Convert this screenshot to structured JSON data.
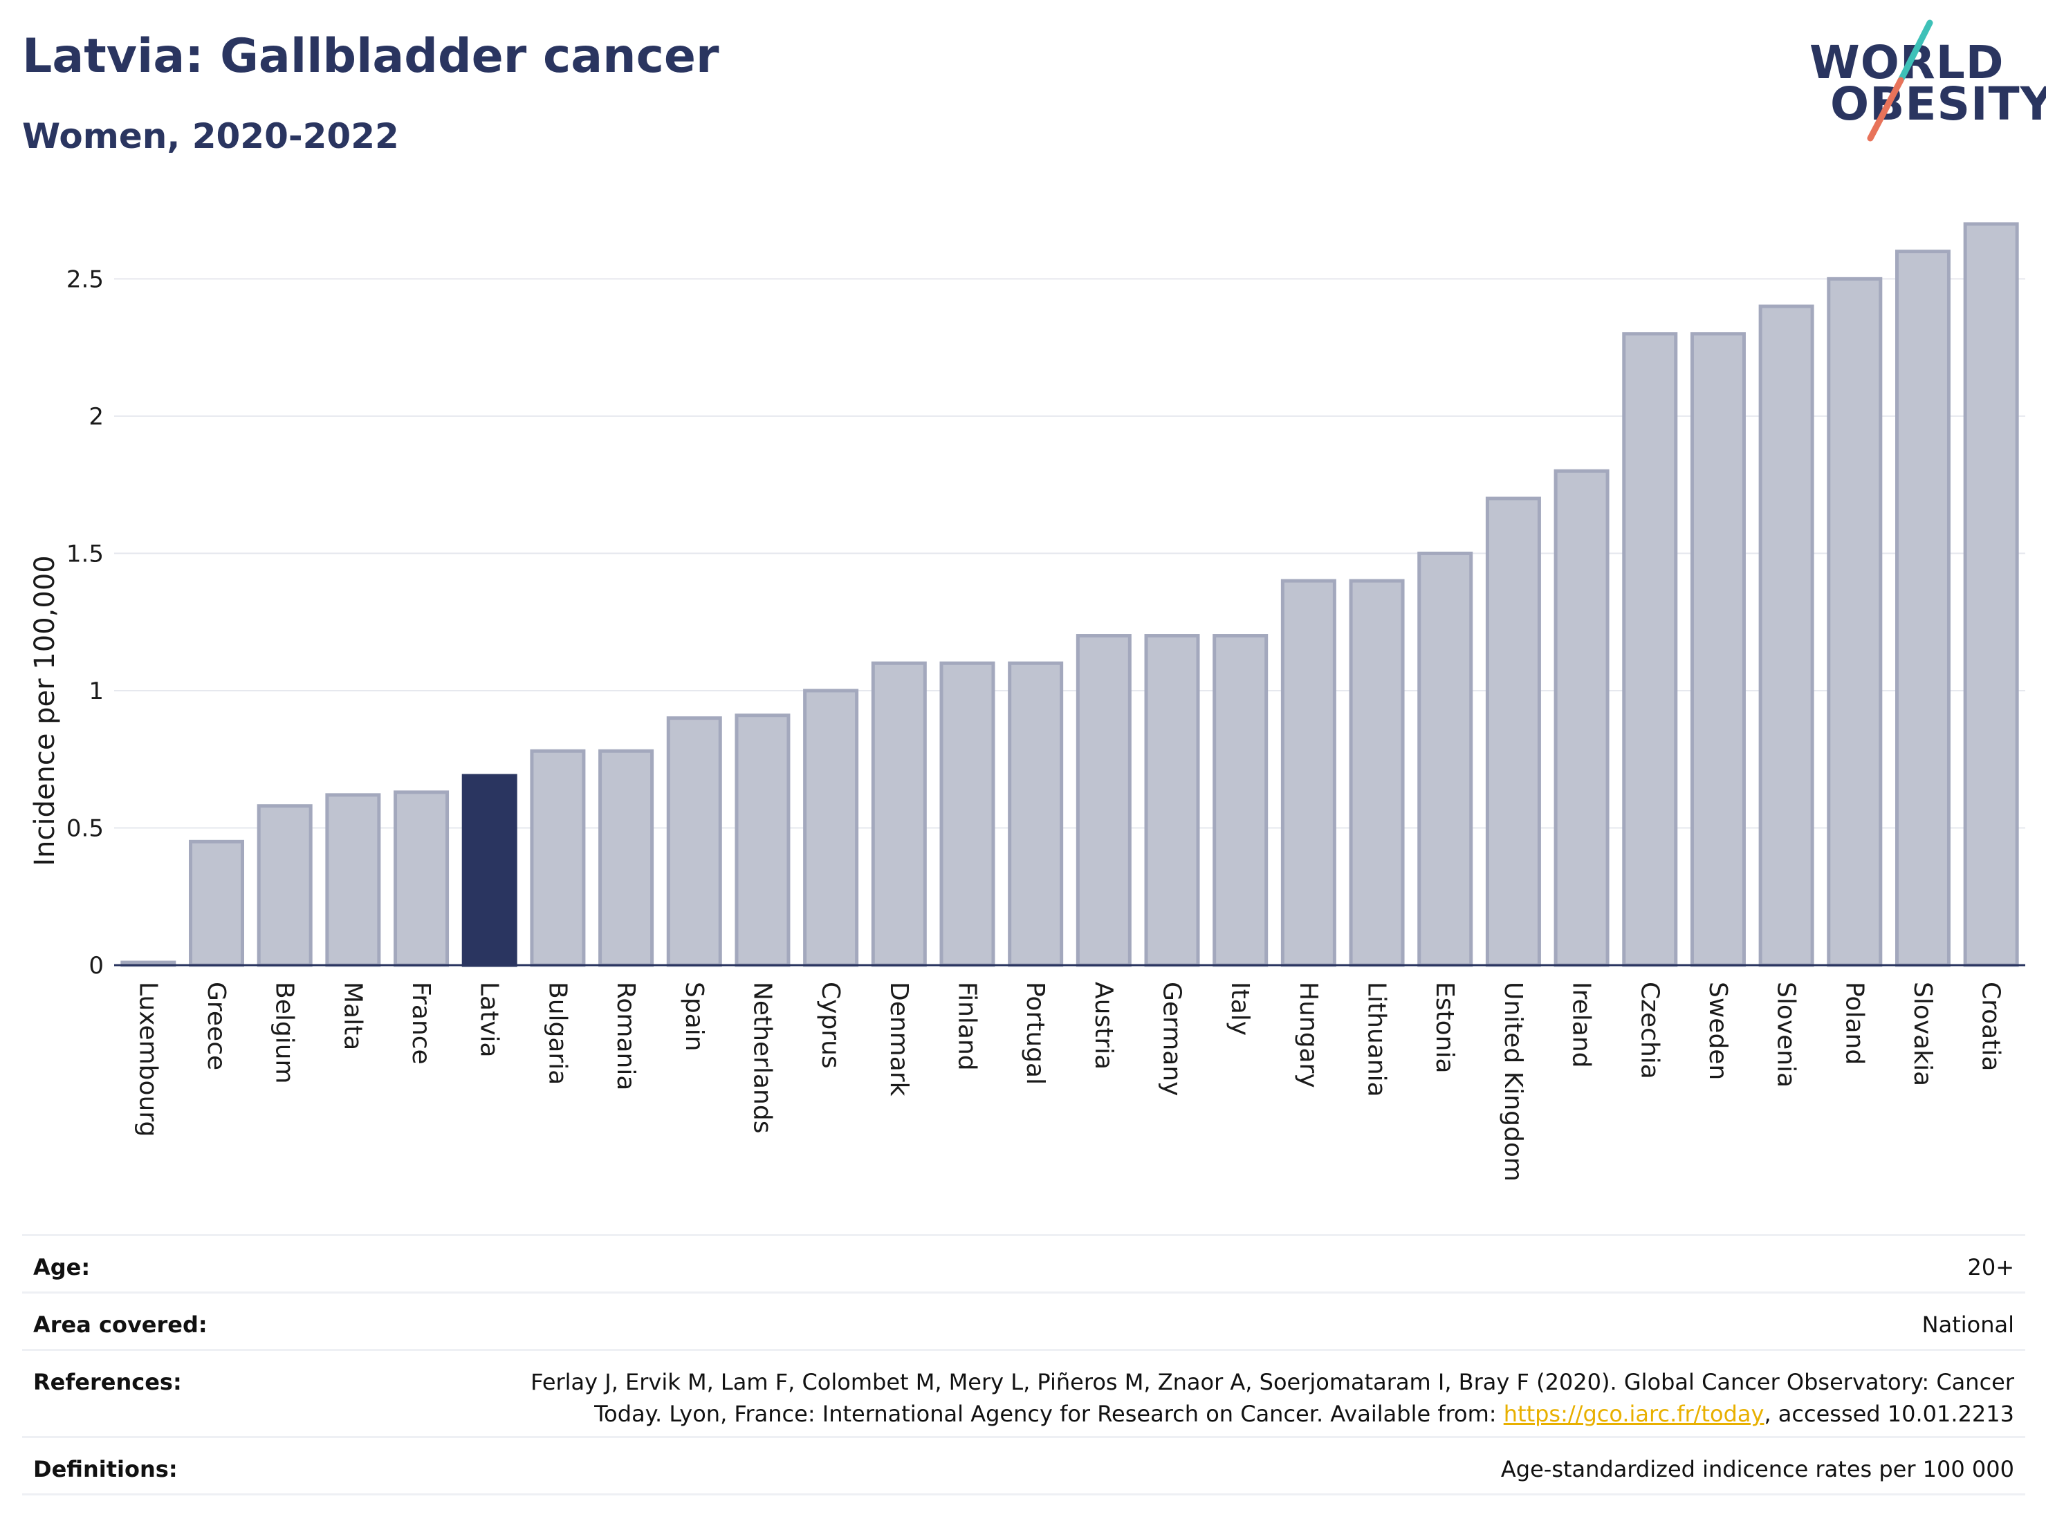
{
  "header": {
    "title": "Latvia: Gallbladder cancer",
    "subtitle": "Women, 2020-2022"
  },
  "logo": {
    "line1": "WORLD",
    "line2": "OBESITY",
    "colors": {
      "teal": "#3ec1b8",
      "coral": "#e8735a"
    }
  },
  "colors": {
    "bar_default": "#bfc3d0",
    "bar_default_stroke": "#a3a8bd",
    "bar_highlight": "#2a3560",
    "gridline": "#e6e8ee",
    "axis": "#2a3560",
    "link": "#e8b000"
  },
  "chart_data": {
    "type": "bar",
    "ylabel": "Incidence per 100,000",
    "ylim": [
      0,
      2.72
    ],
    "yticks": [
      0,
      0.5,
      1,
      1.5,
      2,
      2.5
    ],
    "ytick_labels": [
      "0",
      "0.5",
      "1",
      "1.5",
      "2",
      "2.5"
    ],
    "grid": true,
    "highlight": "Latvia",
    "categories": [
      "Luxembourg",
      "Greece",
      "Belgium",
      "Malta",
      "France",
      "Latvia",
      "Bulgaria",
      "Romania",
      "Spain",
      "Netherlands",
      "Cyprus",
      "Denmark",
      "Finland",
      "Portugal",
      "Austria",
      "Germany",
      "Italy",
      "Hungary",
      "Lithuania",
      "Estonia",
      "United Kingdom",
      "Ireland",
      "Czechia",
      "Sweden",
      "Slovenia",
      "Poland",
      "Slovakia",
      "Croatia"
    ],
    "values": [
      0.01,
      0.45,
      0.58,
      0.62,
      0.63,
      0.69,
      0.78,
      0.78,
      0.9,
      0.91,
      1.0,
      1.1,
      1.1,
      1.1,
      1.2,
      1.2,
      1.2,
      1.4,
      1.4,
      1.5,
      1.7,
      1.8,
      2.3,
      2.3,
      2.4,
      2.5,
      2.6,
      2.7
    ]
  },
  "meta": {
    "age_label": "Age:",
    "age_value": "20+",
    "area_label": "Area covered:",
    "area_value": "National",
    "references_label": "References:",
    "references_text_1": "Ferlay J, Ervik M, Lam F, Colombet M, Mery L, Piñeros M, Znaor A, Soerjomataram I, Bray F (2020). Global Cancer Observatory: Cancer Today. Lyon, France: International Agency for Research on Cancer. Available from: ",
    "references_link": "https://gco.iarc.fr/today",
    "references_text_2": ", accessed 10.01.2213",
    "definitions_label": "Definitions:",
    "definitions_value": "Age-standardized indicence rates per 100 000"
  }
}
